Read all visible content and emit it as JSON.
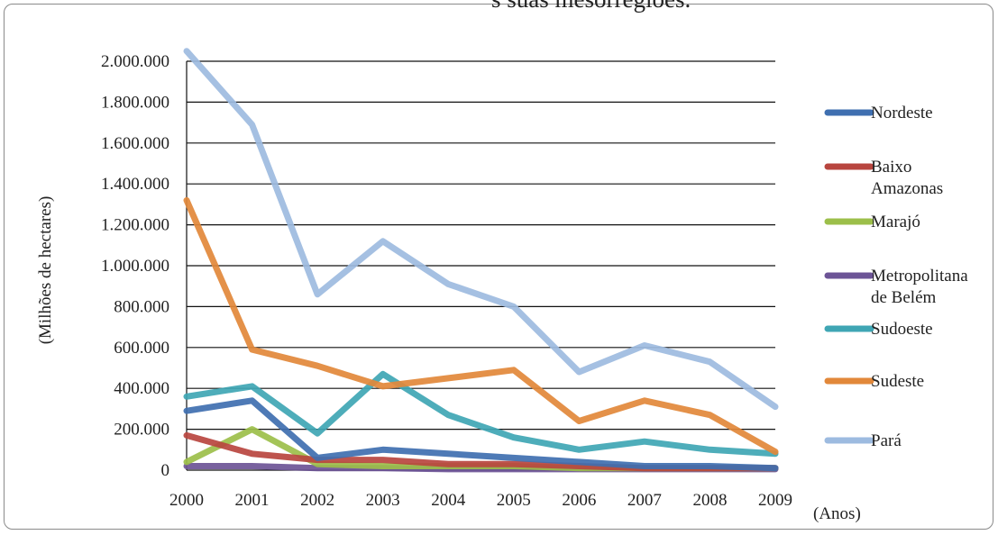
{
  "chart_title_fragment": "s suas mesorregiões.",
  "chart_data": {
    "type": "line",
    "title": "",
    "xlabel": "(Anos)",
    "ylabel": "(Milhões de hectares)",
    "ylim": [
      0,
      2000000
    ],
    "y_ticks": [
      "0",
      "200.000",
      "400.000",
      "600.000",
      "800.000",
      "1.000.000",
      "1.200.000",
      "1.400.000",
      "1.600.000",
      "1.800.000",
      "2.000.000"
    ],
    "y_tick_values": [
      0,
      200000,
      400000,
      600000,
      800000,
      1000000,
      1200000,
      1400000,
      1600000,
      1800000,
      2000000
    ],
    "categories": [
      "2000",
      "2001",
      "2002",
      "2003",
      "2004",
      "2005",
      "2006",
      "2007",
      "2008",
      "2009"
    ],
    "grid": "horizontal",
    "legend_position": "right",
    "series": [
      {
        "name": "Nordeste",
        "color": "#3f6fb0",
        "values": [
          290000,
          340000,
          60000,
          100000,
          80000,
          60000,
          40000,
          20000,
          20000,
          10000
        ]
      },
      {
        "name": "Baixo Amazonas",
        "color": "#b8453f",
        "values": [
          170000,
          80000,
          50000,
          50000,
          30000,
          30000,
          20000,
          10000,
          10000,
          10000
        ]
      },
      {
        "name": "Marajó",
        "color": "#9cbf4a",
        "values": [
          40000,
          200000,
          30000,
          20000,
          20000,
          20000,
          10000,
          10000,
          10000,
          10000
        ]
      },
      {
        "name": "Metropolitana de Belém",
        "color": "#6c5496",
        "values": [
          20000,
          20000,
          10000,
          10000,
          5000,
          5000,
          5000,
          5000,
          5000,
          5000
        ]
      },
      {
        "name": "Sudoeste",
        "color": "#3fa6b4",
        "values": [
          360000,
          410000,
          180000,
          470000,
          270000,
          160000,
          100000,
          140000,
          100000,
          80000
        ]
      },
      {
        "name": "Sudeste",
        "color": "#e2883a",
        "values": [
          1320000,
          590000,
          510000,
          410000,
          450000,
          490000,
          240000,
          340000,
          270000,
          90000
        ]
      },
      {
        "name": "Pará",
        "color": "#9dbbe0",
        "values": [
          2050000,
          1690000,
          860000,
          1120000,
          910000,
          800000,
          480000,
          610000,
          530000,
          310000
        ]
      }
    ]
  }
}
